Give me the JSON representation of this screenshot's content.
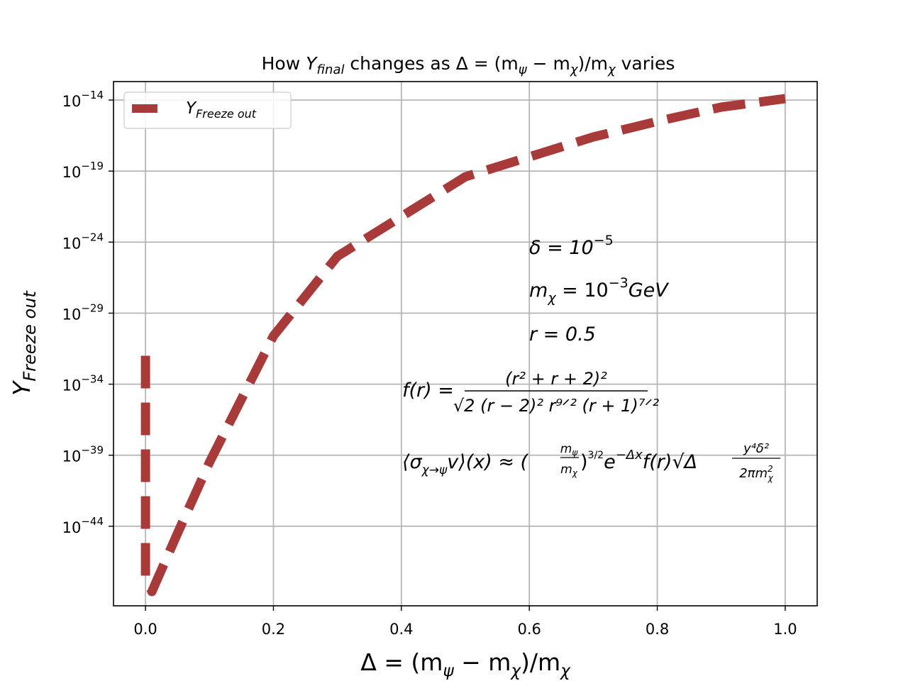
{
  "chart_data": {
    "type": "line",
    "title": {
      "prefix": "How ",
      "y_sym": "Y",
      "y_sub": "final",
      "mid": " changes as Δ = (m",
      "sub1": "ψ",
      "minus": " − m",
      "sub2": "χ",
      "close": ")/m",
      "sub3": "χ",
      "suffix": " varies"
    },
    "xlabel": {
      "main": "Δ = (m",
      "sub1": "ψ",
      "minus": " − m",
      "sub2": "χ",
      "close": ")/m",
      "sub3": "χ"
    },
    "ylabel": {
      "main": "Y",
      "sub": "Freeze   out"
    },
    "xlim": [
      -0.05,
      1.05
    ],
    "ylim_log10": [
      -49.6,
      -12.7
    ],
    "log_y": true,
    "grid": true,
    "xticks": [
      "0.0",
      "0.2",
      "0.4",
      "0.6",
      "0.8",
      "1.0"
    ],
    "xtick_values": [
      0.0,
      0.2,
      0.4,
      0.6,
      0.8,
      1.0
    ],
    "yticks_exponents": [
      "−14",
      "−19",
      "−24",
      "−29",
      "−34",
      "−39",
      "−44"
    ],
    "ytick_log_values": [
      -14,
      -19,
      -24,
      -29,
      -34,
      -39,
      -44
    ],
    "series": [
      {
        "name": "Y_Freeze out",
        "legend_main": "Y",
        "legend_sub": "Freeze   out",
        "color": "#a83a3a",
        "linestyle": "dashed",
        "x": [
          0.0,
          0.0,
          0.01,
          0.05,
          0.1,
          0.2,
          0.3,
          0.4,
          0.5,
          0.6,
          0.7,
          0.8,
          0.9,
          1.0
        ],
        "log10_y": [
          -32.0,
          -47.5,
          -48.6,
          -44.5,
          -39.5,
          -30.6,
          -25.0,
          -22.2,
          -19.4,
          -18.0,
          -16.6,
          -15.5,
          -14.5,
          -13.9
        ]
      }
    ],
    "legend_position": "upper-left",
    "annotations": {
      "delta": {
        "lhs": "δ = 10",
        "exp": "−5"
      },
      "mchi": {
        "lhs": "m",
        "sub": "χ",
        "mid": " = 10",
        "exp": "−3",
        "unit": "GeV"
      },
      "r": "r = 0.5",
      "f_def": {
        "lhs": "f(r) = ",
        "num": "(r² + r + 2)²",
        "den": "√2 (r − 2)² r⁹ᐟ² (r + 1)⁷ᐟ²"
      },
      "sigma": {
        "lhs": "⟨σ",
        "lhs_sub": "χ→ψ",
        "lhs_rest": "v⟩(x) ≈ (",
        "frac_num": "m",
        "frac_num_sub": "ψ",
        "frac_den": "m",
        "frac_den_sub": "χ",
        "power": ")",
        "power_exp": "3/2",
        "exp_part": "e",
        "exp_sup": "−Δx",
        "rest": "f(r)√Δ",
        "y_num": "y⁴δ²",
        "y_den": "2πm",
        "y_den_sub": "χ",
        "y_den_sup": "2"
      }
    }
  }
}
